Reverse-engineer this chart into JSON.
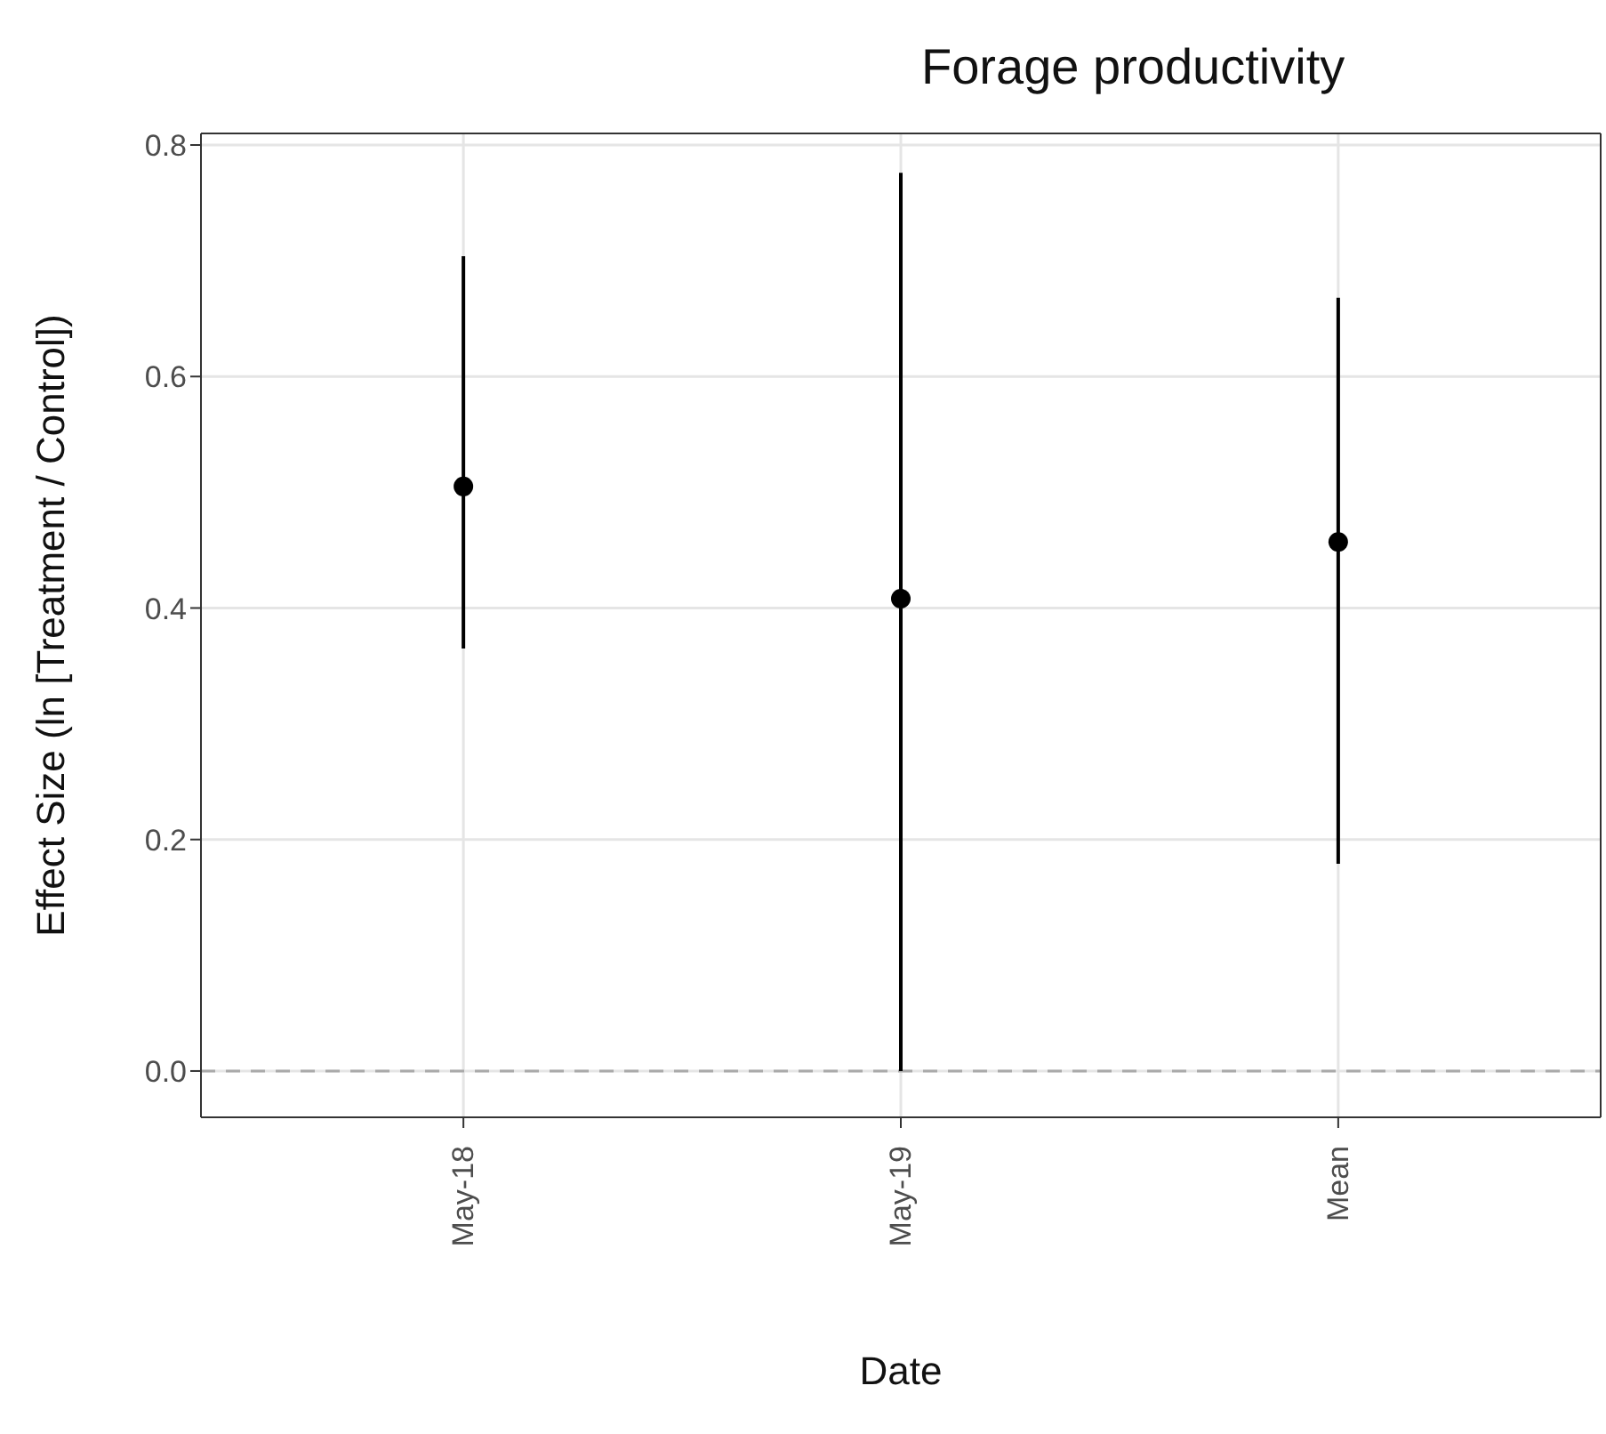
{
  "chart_data": {
    "type": "scatter",
    "title": "Forage productivity",
    "xlabel": "Date",
    "ylabel": "Effect Size (ln [Treatment / Control])",
    "categories": [
      "May-18",
      "May-19",
      "Mean"
    ],
    "series": [
      {
        "color": "#000000",
        "values": [
          0.505,
          0.408,
          0.457
        ],
        "errors": [
          [
            0.365,
            0.704
          ],
          [
            0.0,
            0.776
          ],
          [
            0.179,
            0.668
          ]
        ]
      }
    ],
    "ylim": [
      -0.04,
      0.81
    ],
    "yticks": [
      {
        "value": 0,
        "label": "0.0"
      },
      {
        "value": 0.2,
        "label": "0.2"
      },
      {
        "value": 0.4,
        "label": "0.4"
      },
      {
        "value": 0.6,
        "label": "0.6"
      },
      {
        "value": 0.8,
        "label": "0.8"
      }
    ],
    "grid": true,
    "marker": "circle",
    "ref_lines": [
      {
        "axis": "y",
        "value": 0,
        "color": "#aaaaaa",
        "line_style": "dashed"
      }
    ]
  }
}
